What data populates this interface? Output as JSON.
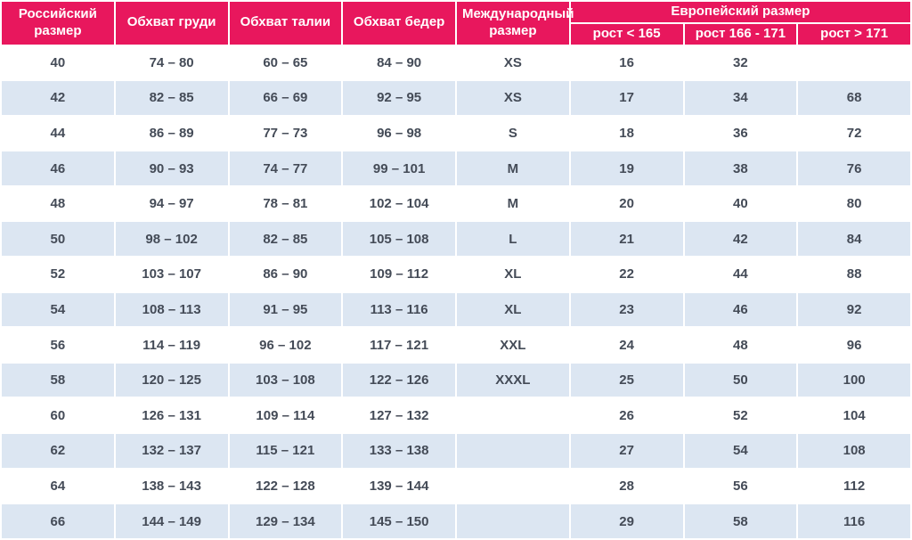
{
  "chart_data": {
    "type": "table",
    "columns": [
      "Российский размер",
      "Обхват груди",
      "Обхват талии",
      "Обхват бедер",
      "Международный размер"
    ],
    "column_group": {
      "label": "Европейский размер",
      "subcolumns": [
        "рост < 165",
        "рост 166 - 171",
        "рост > 171"
      ]
    },
    "rows": [
      [
        "40",
        "74 – 80",
        "60 – 65",
        "84 – 90",
        "XS",
        "16",
        "32",
        ""
      ],
      [
        "42",
        "82 – 85",
        "66 – 69",
        "92 – 95",
        "XS",
        "17",
        "34",
        "68"
      ],
      [
        "44",
        "86 – 89",
        "77 – 73",
        "96 – 98",
        "S",
        "18",
        "36",
        "72"
      ],
      [
        "46",
        "90 – 93",
        "74 – 77",
        "99 – 101",
        "M",
        "19",
        "38",
        "76"
      ],
      [
        "48",
        "94 – 97",
        "78 – 81",
        "102 – 104",
        "M",
        "20",
        "40",
        "80"
      ],
      [
        "50",
        "98 – 102",
        "82 – 85",
        "105 – 108",
        "L",
        "21",
        "42",
        "84"
      ],
      [
        "52",
        "103 – 107",
        "86 – 90",
        "109 – 112",
        "XL",
        "22",
        "44",
        "88"
      ],
      [
        "54",
        "108 – 113",
        "91 – 95",
        "113 – 116",
        "XL",
        "23",
        "46",
        "92"
      ],
      [
        "56",
        "114 – 119",
        "96 – 102",
        "117 – 121",
        "XXL",
        "24",
        "48",
        "96"
      ],
      [
        "58",
        "120 – 125",
        "103 – 108",
        "122 – 126",
        "XXXL",
        "25",
        "50",
        "100"
      ],
      [
        "60",
        "126 – 131",
        "109 – 114",
        "127 – 132",
        "",
        "26",
        "52",
        "104"
      ],
      [
        "62",
        "132 – 137",
        "115 – 121",
        "133 – 138",
        "",
        "27",
        "54",
        "108"
      ],
      [
        "64",
        "138 – 143",
        "122 – 128",
        "139 – 144",
        "",
        "28",
        "56",
        "112"
      ],
      [
        "66",
        "144 – 149",
        "129 – 134",
        "145 – 150",
        "",
        "29",
        "58",
        "116"
      ]
    ]
  },
  "colors": {
    "header_bg": "#e8175d",
    "row_alt_bg": "#dce6f2",
    "text_color": "#444b57"
  }
}
